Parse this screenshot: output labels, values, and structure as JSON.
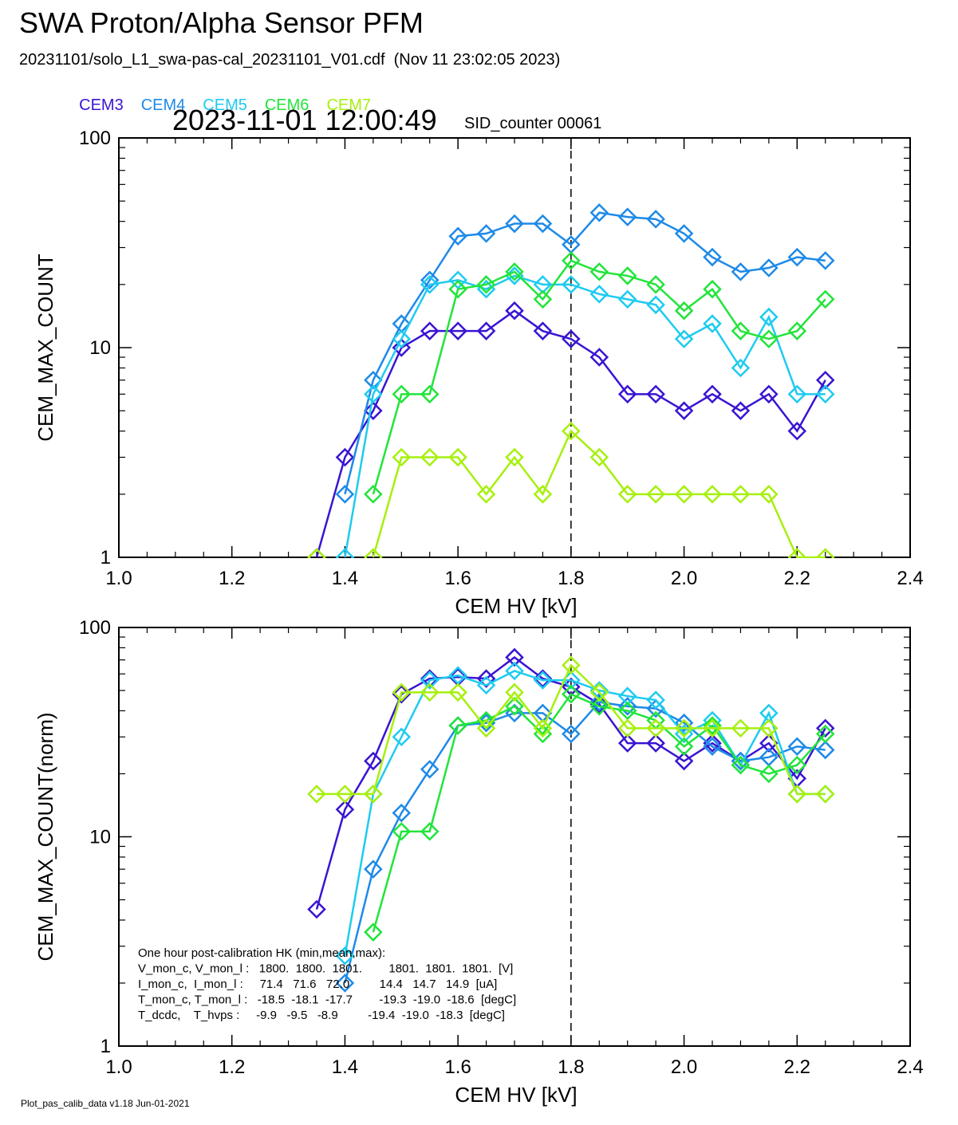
{
  "header": {
    "title": "SWA Proton/Alpha Sensor PFM",
    "subtitle": "20231101/solo_L1_swa-pas-cal_20231101_V01.cdf  (Nov 11 23:02:05 2023)",
    "timestamp": "2023-11-01 12:00:49",
    "sid_counter": "SID_counter 00061"
  },
  "legend": [
    {
      "name": "CEM3",
      "color": "#3a14d2"
    },
    {
      "name": "CEM4",
      "color": "#1e8ae8"
    },
    {
      "name": "CEM5",
      "color": "#1ecbf0"
    },
    {
      "name": "CEM6",
      "color": "#22e43a"
    },
    {
      "name": "CEM7",
      "color": "#a6f00e"
    }
  ],
  "hk_box": {
    "lines": [
      "One hour post-calibration HK (min,mean,max):",
      "V_mon_c, V_mon_l :   1800.  1800.  1801.        1801.  1801.  1801.  [V]",
      "I_mon_c,  I_mon_l :     71.4   71.6   72.0         14.4   14.7   14.9  [uA]",
      "T_mon_c, T_mon_l :   -18.5  -18.1  -17.7        -19.3  -19.0  -18.6  [degC]",
      "T_dcdc,    T_hvps :     -9.9   -9.5   -8.9         -19.4  -19.0  -18.3  [degC]"
    ]
  },
  "footer": "Plot_pas_calib_data v1.18 Jun-01-2021",
  "chart_data": [
    {
      "type": "line",
      "xlabel": "CEM HV [kV]",
      "ylabel": "CEM_MAX_COUNT",
      "xlim": [
        1.0,
        2.4
      ],
      "ylim": [
        1,
        100
      ],
      "yscale": "log",
      "xticks": [
        "1.0",
        "1.2",
        "1.4",
        "1.6",
        "1.8",
        "2.0",
        "2.2",
        "2.4"
      ],
      "yticks": [
        "1",
        "10",
        "100"
      ],
      "vline": 1.8,
      "x": [
        1.35,
        1.4,
        1.45,
        1.5,
        1.55,
        1.6,
        1.65,
        1.7,
        1.75,
        1.8,
        1.85,
        1.9,
        1.95,
        2.0,
        2.05,
        2.1,
        2.15,
        2.2,
        2.25
      ],
      "series": [
        {
          "name": "CEM3",
          "color": "#3a14d2",
          "values": [
            1,
            3,
            5,
            10,
            12,
            12,
            12,
            15,
            12,
            11,
            9,
            6,
            6,
            5,
            6,
            5,
            6,
            4,
            7
          ]
        },
        {
          "name": "CEM4",
          "color": "#1e8ae8",
          "values": [
            null,
            2,
            7,
            13,
            21,
            34,
            35,
            39,
            39,
            31,
            44,
            42,
            41,
            35,
            27,
            23,
            24,
            27,
            26
          ]
        },
        {
          "name": "CEM5",
          "color": "#1ecbf0",
          "values": [
            null,
            1,
            6,
            11,
            20,
            21,
            19,
            22,
            20,
            20,
            18,
            17,
            16,
            11,
            13,
            8,
            14,
            6,
            6
          ]
        },
        {
          "name": "CEM6",
          "color": "#22e43a",
          "values": [
            null,
            null,
            2,
            6,
            6,
            19,
            20,
            23,
            17,
            26,
            23,
            22,
            20,
            15,
            19,
            12,
            11,
            12,
            17
          ]
        },
        {
          "name": "CEM7",
          "color": "#a6f00e",
          "values": [
            1,
            null,
            1,
            3,
            3,
            3,
            2,
            3,
            2,
            4,
            3,
            2,
            2,
            2,
            2,
            2,
            2,
            1,
            1
          ]
        }
      ]
    },
    {
      "type": "line",
      "xlabel": "CEM HV [kV]",
      "ylabel": "CEM_MAX_COUNT(norm)",
      "xlim": [
        1.0,
        2.4
      ],
      "ylim": [
        1,
        100
      ],
      "yscale": "log",
      "xticks": [
        "1.0",
        "1.2",
        "1.4",
        "1.6",
        "1.8",
        "2.0",
        "2.2",
        "2.4"
      ],
      "yticks": [
        "1",
        "10",
        "100"
      ],
      "vline": 1.8,
      "x": [
        1.35,
        1.4,
        1.45,
        1.5,
        1.55,
        1.6,
        1.65,
        1.7,
        1.75,
        1.8,
        1.85,
        1.9,
        1.95,
        2.0,
        2.05,
        2.1,
        2.15,
        2.2,
        2.25
      ],
      "series": [
        {
          "name": "CEM3",
          "color": "#3a14d2",
          "values": [
            4.5,
            13.5,
            23,
            48,
            57,
            58,
            57,
            72,
            57,
            52,
            43,
            28,
            28,
            23,
            28,
            23,
            28,
            19,
            33
          ]
        },
        {
          "name": "CEM4",
          "color": "#1e8ae8",
          "values": [
            null,
            2,
            7,
            13,
            21,
            34,
            35,
            39,
            39,
            31,
            44,
            42,
            41,
            35,
            27,
            23,
            24,
            27,
            26
          ]
        },
        {
          "name": "CEM5",
          "color": "#1ecbf0",
          "values": [
            null,
            2.7,
            16,
            30,
            56,
            59,
            53,
            62,
            56,
            56,
            50,
            47,
            45,
            31,
            36,
            22,
            39,
            16,
            16
          ]
        },
        {
          "name": "CEM6",
          "color": "#22e43a",
          "values": [
            null,
            null,
            3.5,
            10.6,
            10.6,
            34,
            36,
            42,
            31,
            48,
            42,
            40,
            36,
            27,
            34,
            22,
            20,
            22,
            31
          ]
        },
        {
          "name": "CEM7",
          "color": "#a6f00e",
          "values": [
            16,
            16,
            16,
            49,
            49,
            49,
            33,
            49,
            33,
            66,
            49,
            33,
            33,
            33,
            33,
            33,
            33,
            16,
            16
          ]
        }
      ]
    }
  ]
}
